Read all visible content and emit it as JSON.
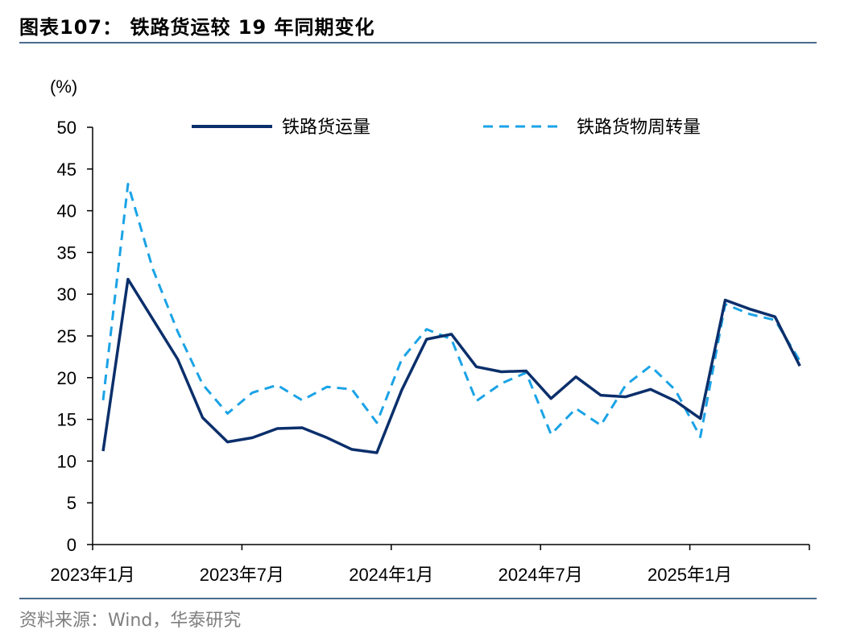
{
  "header": {
    "title": "图表107：  铁路货运较 19 年同期变化"
  },
  "footer": {
    "source": "资料来源：Wind，华泰研究"
  },
  "colors": {
    "series1": "#0b2f6b",
    "series2": "#1aa3e6",
    "rule": "#4a6c8e",
    "axis": "#000000"
  },
  "chart_data": {
    "type": "line",
    "title": "",
    "ylabel": "(%)",
    "ylim": [
      0,
      50
    ],
    "yticks": [
      "0",
      "5",
      "10",
      "15",
      "20",
      "25",
      "30",
      "35",
      "40",
      "45",
      "50"
    ],
    "xtick_labels": [
      "2023年1月",
      "2023年7月",
      "2024年1月",
      "2024年7月",
      "2025年1月"
    ],
    "legend_position": "top",
    "x": [
      "2023-01",
      "2023-02",
      "2023-03",
      "2023-04",
      "2023-05",
      "2023-06",
      "2023-07",
      "2023-08",
      "2023-09",
      "2023-10",
      "2023-11",
      "2023-12",
      "2024-01",
      "2024-02",
      "2024-03",
      "2024-04",
      "2024-05",
      "2024-06",
      "2024-07",
      "2024-08",
      "2024-09",
      "2024-10",
      "2024-11",
      "2024-12",
      "2025-01",
      "2025-02",
      "2025-03",
      "2025-04",
      "2025-05"
    ],
    "series": [
      {
        "name": "铁路货运量",
        "style": "solid",
        "values": [
          11.2,
          31.8,
          27.0,
          22.2,
          15.2,
          12.3,
          12.8,
          13.9,
          14.0,
          12.8,
          11.4,
          11.0,
          18.5,
          24.6,
          25.2,
          21.3,
          20.7,
          20.8,
          17.5,
          20.1,
          17.9,
          17.7,
          18.6,
          17.2,
          15.1,
          29.3,
          28.2,
          27.3,
          21.4
        ]
      },
      {
        "name": "铁路货物周转量",
        "style": "dashed",
        "values": [
          17.3,
          43.2,
          33.0,
          25.5,
          19.2,
          15.7,
          18.2,
          19.1,
          17.3,
          18.9,
          18.6,
          14.6,
          22.2,
          25.8,
          24.6,
          17.2,
          19.3,
          20.6,
          13.2,
          16.3,
          14.3,
          19.1,
          21.4,
          18.5,
          12.9,
          28.8,
          27.6,
          26.9,
          22.0
        ]
      }
    ]
  }
}
